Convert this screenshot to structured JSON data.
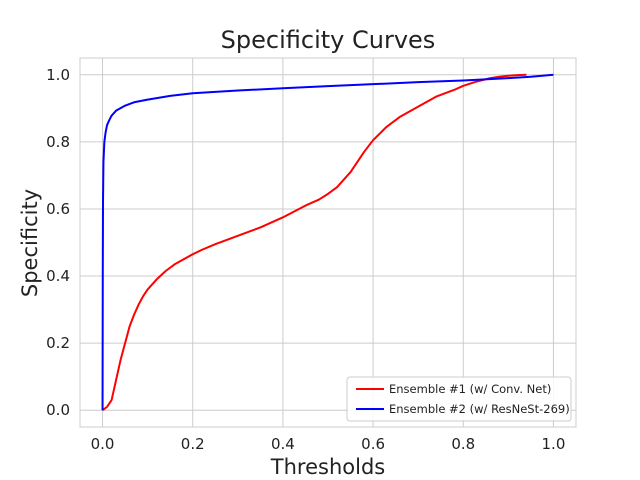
{
  "chart_data": {
    "type": "line",
    "title": "Specificity Curves",
    "xlabel": "Thresholds",
    "ylabel": "Specificity",
    "xlim": [
      -0.05,
      1.05
    ],
    "ylim": [
      -0.05,
      1.05
    ],
    "xticks": [
      0.0,
      0.2,
      0.4,
      0.6,
      0.8,
      1.0
    ],
    "xtick_labels": [
      "0.0",
      "0.2",
      "0.4",
      "0.6",
      "0.8",
      "1.0"
    ],
    "yticks": [
      0.0,
      0.2,
      0.4,
      0.6,
      0.8,
      1.0
    ],
    "ytick_labels": [
      "0.0",
      "0.2",
      "0.4",
      "0.6",
      "0.8",
      "1.0"
    ],
    "grid": true,
    "legend_position": "lower-right",
    "series": [
      {
        "name": "Ensemble #1 (w/ Conv. Net)",
        "color": "#ff0000",
        "x": [
          0.0,
          0.01,
          0.02,
          0.03,
          0.04,
          0.05,
          0.06,
          0.07,
          0.08,
          0.09,
          0.1,
          0.12,
          0.14,
          0.16,
          0.18,
          0.2,
          0.22,
          0.25,
          0.3,
          0.35,
          0.4,
          0.45,
          0.48,
          0.5,
          0.52,
          0.55,
          0.58,
          0.6,
          0.63,
          0.66,
          0.7,
          0.74,
          0.78,
          0.8,
          0.83,
          0.86,
          0.88,
          0.9,
          0.92,
          0.94
        ],
        "y": [
          0.0,
          0.01,
          0.03,
          0.09,
          0.15,
          0.2,
          0.25,
          0.285,
          0.315,
          0.34,
          0.36,
          0.39,
          0.415,
          0.435,
          0.45,
          0.465,
          0.478,
          0.495,
          0.52,
          0.545,
          0.575,
          0.61,
          0.628,
          0.645,
          0.665,
          0.71,
          0.77,
          0.805,
          0.845,
          0.875,
          0.905,
          0.935,
          0.955,
          0.967,
          0.98,
          0.99,
          0.994,
          0.997,
          0.999,
          1.0
        ]
      },
      {
        "name": "Ensemble #2 (w/ ResNeSt-269)",
        "color": "#0000ff",
        "x": [
          0.0,
          0.0005,
          0.001,
          0.002,
          0.004,
          0.007,
          0.01,
          0.015,
          0.02,
          0.03,
          0.05,
          0.07,
          0.1,
          0.15,
          0.2,
          0.3,
          0.4,
          0.5,
          0.6,
          0.7,
          0.8,
          0.9,
          0.95,
          1.0
        ],
        "y": [
          0.0,
          0.4,
          0.62,
          0.74,
          0.8,
          0.83,
          0.85,
          0.865,
          0.878,
          0.893,
          0.908,
          0.918,
          0.926,
          0.937,
          0.945,
          0.953,
          0.96,
          0.966,
          0.972,
          0.978,
          0.983,
          0.99,
          0.994,
          1.0
        ]
      }
    ]
  }
}
